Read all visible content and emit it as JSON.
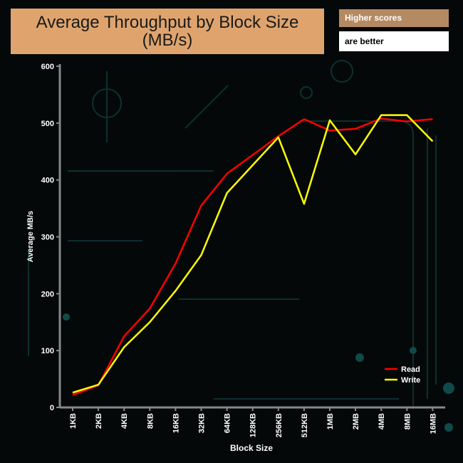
{
  "chart_data": {
    "type": "line",
    "title": "Average Throughput by Block Size",
    "subtitle": "(MB/s)",
    "xlabel": "Block Size",
    "ylabel": "Average MB/s",
    "ylim": [
      0,
      600
    ],
    "yticks": [
      0,
      100,
      200,
      300,
      400,
      500,
      600
    ],
    "categories": [
      "1KB",
      "2KB",
      "4KB",
      "8KB",
      "16KB",
      "32KB",
      "64KB",
      "128KB",
      "256KB",
      "512KB",
      "1MB",
      "2MB",
      "4MB",
      "8MB",
      "16MB"
    ],
    "series": [
      {
        "name": "Read",
        "color": "#ff0000",
        "values": [
          22,
          39,
          125,
          174,
          253,
          355,
          411,
          444,
          477,
          507,
          487,
          490,
          508,
          503,
          507
        ]
      },
      {
        "name": "Write",
        "color": "#ffff00",
        "values": [
          26,
          40,
          106,
          150,
          205,
          268,
          377,
          426,
          475,
          358,
          505,
          445,
          514,
          514,
          468
        ]
      }
    ],
    "legend": "bottom-right",
    "grid": false
  },
  "notes": {
    "line1": "Higher scores",
    "line2": "are better"
  }
}
